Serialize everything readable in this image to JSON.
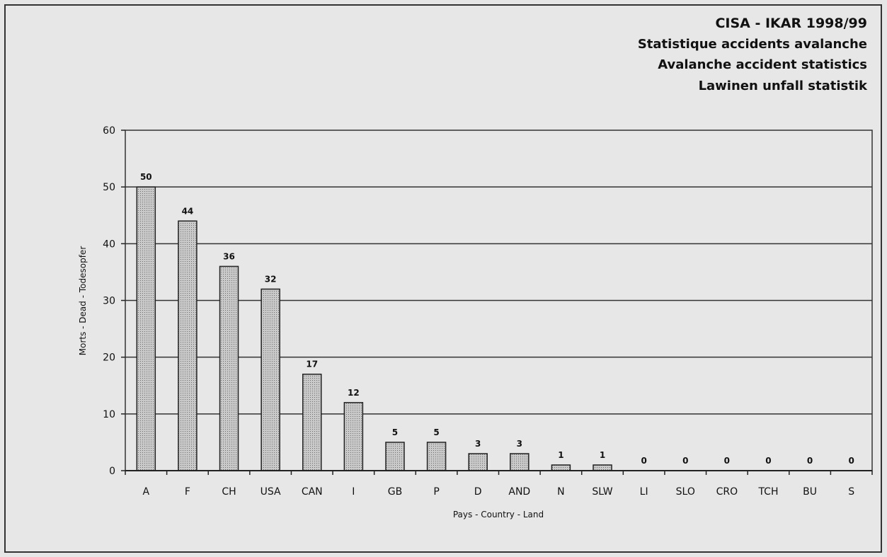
{
  "chart_data": {
    "type": "bar",
    "title_lines": [
      "CISA - IKAR  1998/99",
      "Statistique accidents avalanche",
      "Avalanche accident statistics",
      "Lawinen unfall statistik"
    ],
    "xlabel": "Pays - Country - Land",
    "ylabel": "Morts - Dead - Todesopfer",
    "ylim": [
      0,
      60
    ],
    "yticks": [
      0,
      10,
      20,
      30,
      40,
      50,
      60
    ],
    "grid": true,
    "categories": [
      "A",
      "F",
      "CH",
      "USA",
      "CAN",
      "I",
      "GB",
      "P",
      "D",
      "AND",
      "N",
      "SLW",
      "LI",
      "SLO",
      "CRO",
      "TCH",
      "BU",
      "S"
    ],
    "values": [
      50,
      44,
      36,
      32,
      17,
      12,
      5,
      5,
      3,
      3,
      1,
      1,
      0,
      0,
      0,
      0,
      0,
      0
    ],
    "colors": {
      "bar_fill": "#c6c6c6",
      "bar_stroke": "#222222",
      "grid": "#333333",
      "background": "#e7e7e7"
    }
  }
}
